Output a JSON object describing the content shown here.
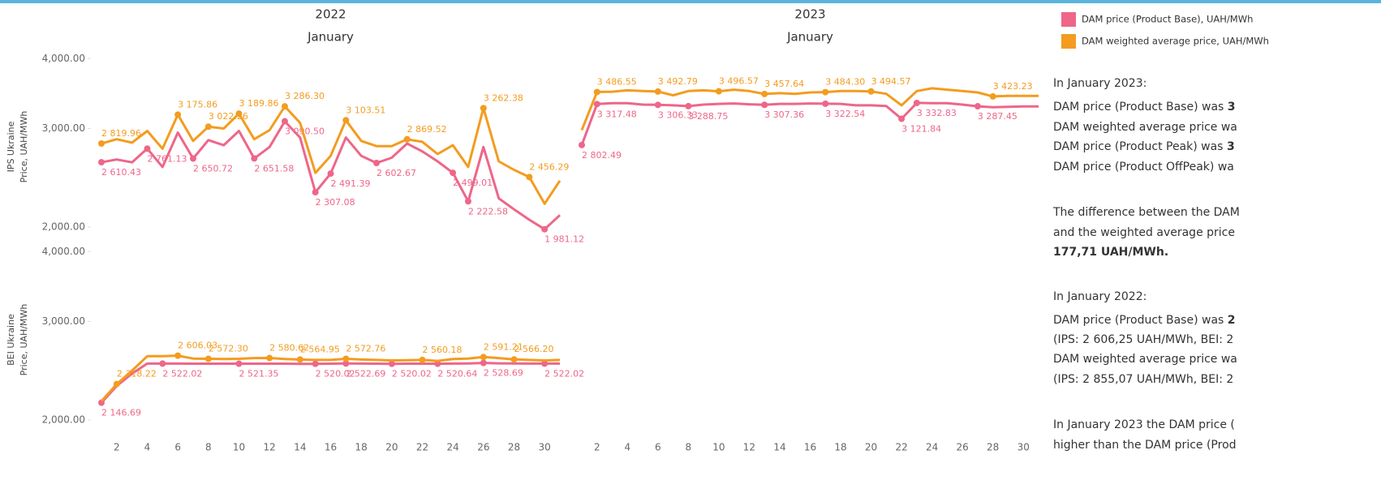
{
  "chart_data": [
    {
      "type": "line",
      "title": "2022",
      "subtitle": "January",
      "ylabel": [
        "IPS Ukraine",
        "Price, UAH/MWh"
      ],
      "yscale": "log",
      "ylim": [
        1870,
        4140
      ],
      "yticks": [
        {
          "value": 2000,
          "label": "2,000.00"
        },
        {
          "value": 3000,
          "label": "3,000.00"
        },
        {
          "value": 4000,
          "label": "4,000.00"
        }
      ],
      "xlim": [
        1,
        31
      ],
      "x": [
        1,
        2,
        3,
        4,
        5,
        6,
        7,
        8,
        9,
        10,
        11,
        12,
        13,
        14,
        15,
        16,
        17,
        18,
        19,
        20,
        21,
        22,
        23,
        24,
        25,
        26,
        27,
        28,
        29,
        30,
        31
      ],
      "series": [
        {
          "name": "DAM price (Product Base), UAH/MWh",
          "color": "#ee6689",
          "label_pos": "below",
          "values": [
            2610.43,
            2640,
            2610,
            2761.13,
            2560,
            2950,
            2650.72,
            2860,
            2800,
            2970,
            2651.58,
            2780,
            3090.5,
            2890,
            2307.08,
            2491.39,
            2890,
            2680,
            2602.67,
            2660,
            2820,
            2730,
            2620,
            2499.01,
            2222.58,
            2780,
            2250,
            2150,
            2060,
            1981.12,
            2100
          ],
          "value_labels": [
            "2 610.43",
            null,
            null,
            "2 761.13",
            null,
            null,
            "2 650.72",
            null,
            null,
            null,
            "2 651.58",
            null,
            "3 090.50",
            null,
            "2 307.08",
            "2 491.39",
            null,
            null,
            "2 602.67",
            null,
            null,
            null,
            null,
            "2 499.01",
            "2 222.58",
            null,
            null,
            null,
            null,
            "1 981.12",
            null
          ]
        },
        {
          "name": "DAM weighted average price, UAH/MWh",
          "color": "#f39c1f",
          "label_pos": "above",
          "values": [
            2819.96,
            2870,
            2830,
            2970,
            2760,
            3175.86,
            2850,
            3022.26,
            3000,
            3189.86,
            2870,
            2980,
            3286.3,
            3070,
            2498.71,
            2680,
            3103.51,
            2850,
            2790,
            2790,
            2869.52,
            2840,
            2700,
            2800,
            2560,
            3262.38,
            2620,
            2530,
            2456.29,
            2200,
            2420
          ],
          "value_labels": [
            "2 819.96",
            null,
            null,
            null,
            null,
            "3 175.86",
            null,
            "3 022.26",
            null,
            "3 189.86",
            null,
            null,
            "3 286.30",
            null,
            null,
            null,
            "3 103.51",
            null,
            null,
            null,
            "2 869.52",
            null,
            null,
            null,
            null,
            "3 262.38",
            null,
            null,
            "2 456.29",
            null,
            null
          ]
        }
      ]
    },
    {
      "type": "line",
      "title": "2023",
      "subtitle": "January",
      "yscale": "log",
      "ylim": [
        1870,
        4140
      ],
      "xlim": [
        1,
        31
      ],
      "x": [
        1,
        2,
        3,
        4,
        5,
        6,
        7,
        8,
        9,
        10,
        11,
        12,
        13,
        14,
        15,
        16,
        17,
        18,
        19,
        20,
        21,
        22,
        23,
        24,
        25,
        26,
        27,
        28,
        29,
        30,
        31
      ],
      "xticks": [
        2,
        4,
        6,
        8,
        10,
        12,
        14,
        16,
        18,
        20,
        22,
        24,
        26,
        28,
        30
      ],
      "series": [
        {
          "name": "DAM price (Product Base), UAH/MWh",
          "color": "#ee6689",
          "label_pos": "below",
          "values": [
            2802.49,
            3317.48,
            3330,
            3330,
            3310,
            3306.33,
            3300,
            3288.75,
            3310,
            3320,
            3325,
            3315,
            3307.36,
            3320,
            3320,
            3325,
            3322.54,
            3320,
            3300,
            3300,
            3290,
            3121.84,
            3332.83,
            3330,
            3330,
            3310,
            3287.45,
            3275,
            3280,
            3285,
            3285
          ],
          "value_labels": [
            "2 802.49",
            "3 317.48",
            null,
            null,
            null,
            "3 306.33",
            null,
            "3 288.75",
            null,
            null,
            null,
            null,
            "3 307.36",
            null,
            null,
            null,
            "3 322.54",
            null,
            null,
            null,
            null,
            "3 121.84",
            "3 332.83",
            null,
            null,
            null,
            "3 287.45",
            null,
            null,
            null,
            null
          ]
        },
        {
          "name": "DAM weighted average price, UAH/MWh",
          "color": "#f39c1f",
          "label_pos": "above",
          "values": [
            2980,
            3486.55,
            3490,
            3510,
            3500,
            3492.79,
            3440,
            3500,
            3510,
            3496.57,
            3520,
            3500,
            3457.64,
            3470,
            3460,
            3480,
            3484.3,
            3500,
            3500,
            3494.57,
            3460,
            3300,
            3500,
            3540,
            3520,
            3500,
            3480,
            3423.23,
            3430,
            3430,
            3430
          ],
          "value_labels": [
            null,
            "3 486.55",
            null,
            null,
            null,
            "3 492.79",
            null,
            null,
            null,
            "3 496.57",
            null,
            null,
            "3 457.64",
            null,
            null,
            null,
            "3 484.30",
            null,
            null,
            "3 494.57",
            null,
            null,
            null,
            null,
            null,
            null,
            null,
            "3 423.23",
            null,
            null,
            null
          ]
        }
      ]
    },
    {
      "type": "line",
      "ylabel": [
        "BEI Ukraine",
        "Price, UAH/MWh"
      ],
      "yscale": "log",
      "ylim": [
        1870,
        4140
      ],
      "yticks": [
        {
          "value": 2000,
          "label": "2,000.00"
        },
        {
          "value": 3000,
          "label": "3,000.00"
        },
        {
          "value": 4000,
          "label": "4,000.00"
        }
      ],
      "xlim": [
        1,
        31
      ],
      "x": [
        1,
        2,
        3,
        4,
        5,
        6,
        7,
        8,
        9,
        10,
        11,
        12,
        13,
        14,
        15,
        16,
        17,
        18,
        19,
        20,
        21,
        22,
        23,
        24,
        25,
        26,
        27,
        28,
        29,
        30,
        31
      ],
      "xticks": [
        2,
        4,
        6,
        8,
        10,
        12,
        14,
        16,
        18,
        20,
        22,
        24,
        26,
        28,
        30
      ],
      "series": [
        {
          "name": "DAM price (Product Base), UAH/MWh",
          "color": "#ee6689",
          "label_pos": "below",
          "values": [
            2146.69,
            2300,
            2420,
            2522.5,
            2522.02,
            2522,
            2521,
            2521,
            2521,
            2521.35,
            2521,
            2521,
            2521,
            2520,
            2520.02,
            2521,
            2522.69,
            2522,
            2521,
            2520.02,
            2521,
            2521,
            2520.64,
            2522,
            2524,
            2528.69,
            2525,
            2523,
            2522,
            2522.02,
            2522
          ],
          "value_labels": [
            "2 146.69",
            null,
            null,
            null,
            "2 522.02",
            null,
            null,
            null,
            null,
            "2 521.35",
            null,
            null,
            null,
            null,
            "2 520.02",
            null,
            "2 522.69",
            null,
            null,
            "2 520.02",
            null,
            null,
            "2 520.64",
            null,
            null,
            "2 528.69",
            null,
            null,
            null,
            "2 522.02",
            null
          ]
        },
        {
          "name": "DAM weighted average price, UAH/MWh",
          "color": "#f39c1f",
          "label_pos": "above",
          "values": [
            2160,
            2318.22,
            2450,
            2600,
            2600,
            2606.03,
            2575,
            2572.3,
            2570,
            2572,
            2580,
            2580.62,
            2570,
            2564.95,
            2560,
            2560,
            2572.76,
            2565,
            2560,
            2555,
            2558,
            2560.18,
            2550,
            2570,
            2575,
            2591.21,
            2580,
            2566.2,
            2560,
            2555,
            2560
          ],
          "value_labels": [
            null,
            "2 318.22",
            null,
            null,
            null,
            "2 606.03",
            null,
            "2 572.30",
            null,
            null,
            null,
            "2 580.62",
            null,
            "2 564.95",
            null,
            null,
            "2 572.76",
            null,
            null,
            null,
            null,
            "2 560.18",
            null,
            null,
            null,
            "2 591.21",
            null,
            "2 566.20",
            null,
            null,
            null
          ]
        }
      ]
    }
  ],
  "text_panel": {
    "lines": [
      [
        {
          "text": "In January 2023:",
          "bold": false
        }
      ],
      [
        {
          "text": "DAM price (Product Base) was ",
          "bold": false
        },
        {
          "text": "3",
          "bold": true
        }
      ],
      [
        {
          "text": "DAM weighted average price wa",
          "bold": false
        }
      ],
      [
        {
          "text": "DAM price (Product Peak) was ",
          "bold": false
        },
        {
          "text": "3",
          "bold": true
        }
      ],
      [
        {
          "text": "DAM price (Product OffPeak) wa",
          "bold": false
        }
      ],
      [
        {
          "text": "The difference between the DAM",
          "bold": false
        }
      ],
      [
        {
          "text": "and the weighted average price",
          "bold": false
        }
      ],
      [
        {
          "text": "177,71 UAH/MWh.",
          "bold": true
        }
      ],
      [
        {
          "text": "In January 2022",
          "bold": false
        },
        {
          "text": ":",
          "bold": false
        }
      ],
      [
        {
          "text": "DAM price (Product Base) was ",
          "bold": false
        },
        {
          "text": "2",
          "bold": true
        }
      ],
      [
        {
          "text": "(IPS: 2 606,25 UAH/MWh, BEI: 2",
          "bold": false
        }
      ],
      [
        {
          "text": "DAM weighted average price wa",
          "bold": false
        }
      ],
      [
        {
          "text": "(IPS: 2 855,07 UAH/MWh, BEI: 2",
          "bold": false
        }
      ],
      [
        {
          "text": "In January 2023 the DAM price (",
          "bold": false
        }
      ],
      [
        {
          "text": "higher than the DAM price (Prod",
          "bold": false
        }
      ]
    ]
  }
}
